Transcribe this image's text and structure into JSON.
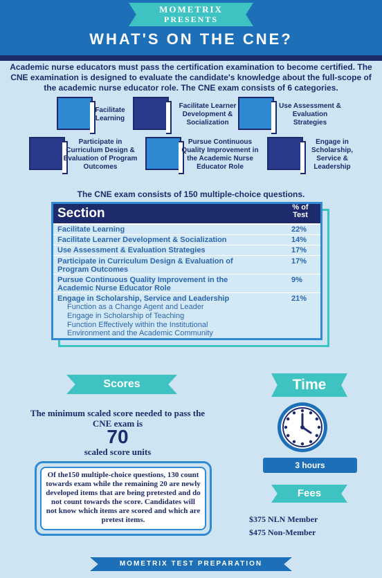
{
  "header": {
    "brand_line1": "MOMETRIX",
    "brand_line2": "PRESENTS",
    "title": "WHAT'S ON THE CNE?"
  },
  "intro": "Academic nurse educators must pass the certification examination to become certified. The CNE examination is designed to evaluate the candidate's knowledge about the full-scope of the academic nurse educator role. The CNE exam consists of 6 categories.",
  "categories": [
    {
      "label": "Facilitate Learning"
    },
    {
      "label": "Facilitate Learner Development & Socialization"
    },
    {
      "label": "Use Assessment & Evaluation Strategies"
    },
    {
      "label": "Participate in Curriculum Design & Evaluation of Program Outcomes"
    },
    {
      "label": "Pursue Continuous Quality Improvement in the Academic Nurse Educator Role"
    },
    {
      "label": "Engage in Scholarship, Service & Leadership"
    }
  ],
  "exam_note": "The CNE exam consists of 150 multiple-choice questions.",
  "table": {
    "header_section": "Section",
    "header_pct": "% of Test",
    "rows": [
      {
        "name": "Facilitate Learning",
        "value": "22%"
      },
      {
        "name": "Facilitate Learner Development & Socialization",
        "value": "14%"
      },
      {
        "name": "Use Assessment & Evaluation Strategies",
        "value": "17%"
      },
      {
        "name": "Participate in Curriculum Design & Evaluation of Program Outcomes",
        "value": "17%"
      },
      {
        "name": "Pursue Continuous Quality Improvement in the Academic Nurse Educator Role",
        "value": "9%"
      },
      {
        "name": "Engage in Scholarship, Service and Leadership",
        "value": "21%"
      }
    ],
    "subitems": [
      "Function as a Change Agent and Leader",
      "Engage in Scholarship of Teaching",
      "Function Effectively within the Institutional Environment and the Academic Community"
    ]
  },
  "scores": {
    "heading": "Scores",
    "text": "The minimum scaled score needed to pass the CNE exam is",
    "value": "70",
    "unit": "scaled score units",
    "note": "Of the150 multiple-choice questions, 130 count towards exam while the remaining 20 are newly developed items that are being pretested and do not count towards the score. Candidates will not know which items are scored and which are pretest items."
  },
  "time": {
    "heading": "Time",
    "duration": "3 hours"
  },
  "fees": {
    "heading": "Fees",
    "nln": "$375 NLN Member",
    "non": "$475 Non-Member"
  },
  "footer": "MOMETRIX TEST PREPARATION"
}
